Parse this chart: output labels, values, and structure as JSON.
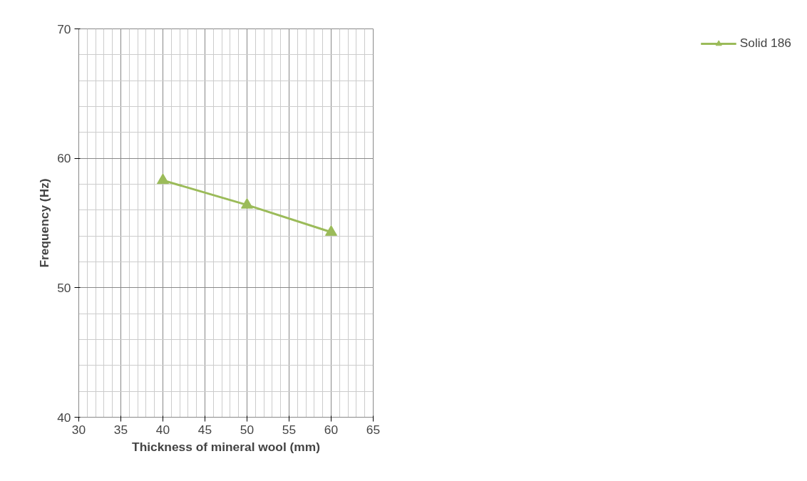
{
  "chart_data": {
    "type": "line",
    "xlabel": "Thickness of mineral wool (mm)",
    "ylabel": "Frequency (Hz)",
    "x": [
      40,
      50,
      60
    ],
    "series": [
      {
        "name": "Solid 186",
        "color": "#9bbb59",
        "values": [
          58.3,
          56.4,
          54.3
        ]
      }
    ],
    "xlim": [
      30,
      65
    ],
    "xticks": [
      30,
      35,
      40,
      45,
      50,
      55,
      60,
      65
    ],
    "ylim": [
      40,
      70
    ],
    "yticks": [
      40,
      50,
      60,
      70
    ],
    "grid": true,
    "legend": "right",
    "marker": "triangle",
    "line_style": "solid"
  }
}
